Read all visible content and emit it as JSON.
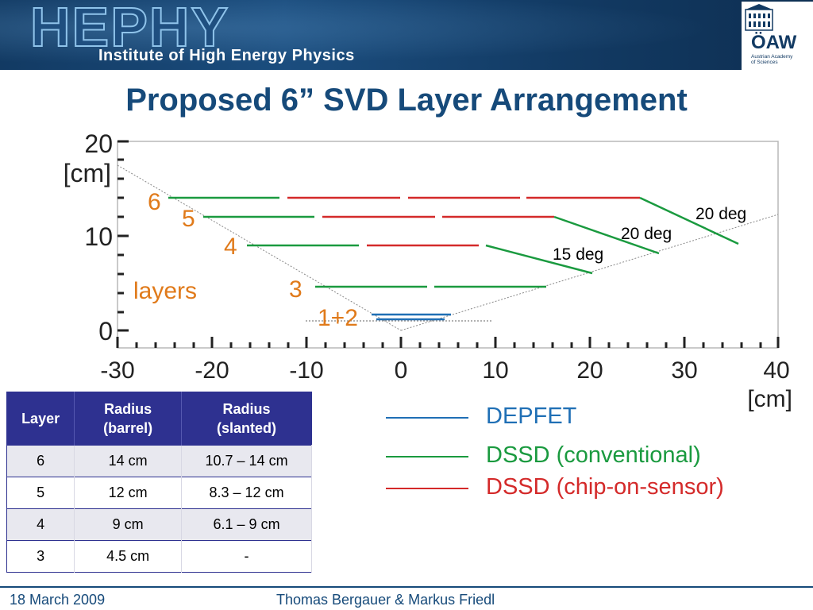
{
  "header": {
    "logo": "HEPHY",
    "subtitle": "Institute of High Energy Physics",
    "oaw": "ÖAW",
    "oaw_small": "Austrian Academy\nof Sciences"
  },
  "title": "Proposed 6” SVD Layer Arrangement",
  "diagram": {
    "y_axis_unit": "[cm]",
    "x_axis_unit": "[cm]",
    "y_ticks": [
      "20",
      "10",
      "0"
    ],
    "x_ticks": [
      "-30",
      "-20",
      "-10",
      "0",
      "10",
      "20",
      "30",
      "40"
    ],
    "layer_labels": [
      "6",
      "5",
      "4",
      "3",
      "1+2"
    ],
    "layers_word": "layers",
    "angle_labels": [
      "20 deg",
      "20 deg",
      "15 deg"
    ],
    "colors": {
      "depfet": "#1f6fb5",
      "dssd_conventional": "#1a9a3f",
      "dssd_chip_on_sensor": "#d42a2a",
      "label_orange": "#e07a1a"
    }
  },
  "legend": [
    {
      "label": "DEPFET",
      "color": "#1f6fb5"
    },
    {
      "label": "DSSD (conventional)",
      "color": "#1a9a3f"
    },
    {
      "label": "DSSD (chip-on-sensor)",
      "color": "#d42a2a"
    }
  ],
  "table": {
    "headers": [
      "Layer",
      "Radius\n(barrel)",
      "Radius\n(slanted)"
    ],
    "rows": [
      [
        "6",
        "14 cm",
        "10.7 – 14 cm"
      ],
      [
        "5",
        "12 cm",
        "8.3 – 12 cm"
      ],
      [
        "4",
        "9 cm",
        "6.1 – 9 cm"
      ],
      [
        "3",
        "4.5 cm",
        "-"
      ]
    ]
  },
  "footer": {
    "date": "18 March 2009",
    "authors": "Thomas Bergauer & Markus Friedl"
  }
}
